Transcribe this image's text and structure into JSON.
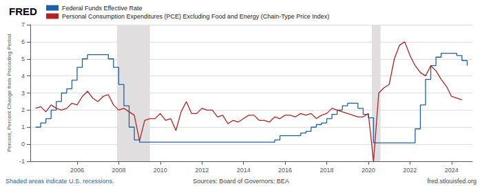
{
  "chart_data": {
    "type": "line",
    "title": "FRED",
    "ylabel": "Percent, Percent Change from Preceding Period",
    "annotations": [
      "Shaded areas indicate U.S. recessions.",
      "Sources: Board of Governors; BEA",
      "fred.stlouisfed.org"
    ],
    "xlim": [
      2003.75,
      2025.0
    ],
    "xticks": [
      2006,
      2008,
      2010,
      2012,
      2014,
      2016,
      2018,
      2020,
      2022,
      2024
    ],
    "ylim": [
      -1,
      7
    ],
    "yticks": [
      -1,
      0,
      1,
      2,
      3,
      4,
      5,
      6,
      7
    ],
    "grid": true,
    "legend": "upper left",
    "recessions": [
      [
        2007.917,
        2009.5
      ],
      [
        2020.167,
        2020.583
      ]
    ],
    "series": [
      {
        "name": "Federal Funds Effective Rate",
        "type": "step",
        "color": "#1f5fa6",
        "x": [
          2004.0,
          2004.25,
          2004.5,
          2004.75,
          2005.0,
          2005.25,
          2005.5,
          2005.75,
          2006.0,
          2006.25,
          2006.5,
          2006.75,
          2007.0,
          2007.25,
          2007.5,
          2007.75,
          2008.0,
          2008.25,
          2008.5,
          2008.75,
          2009.0,
          2009.25,
          2009.5,
          2009.75,
          2010.0,
          2010.25,
          2010.5,
          2010.75,
          2011.0,
          2011.25,
          2011.5,
          2011.75,
          2012.0,
          2012.25,
          2012.5,
          2012.75,
          2013.0,
          2013.25,
          2013.5,
          2013.75,
          2014.0,
          2014.25,
          2014.5,
          2014.75,
          2015.0,
          2015.25,
          2015.5,
          2015.75,
          2016.0,
          2016.25,
          2016.5,
          2016.75,
          2017.0,
          2017.25,
          2017.5,
          2017.75,
          2018.0,
          2018.25,
          2018.5,
          2018.75,
          2019.0,
          2019.25,
          2019.5,
          2019.75,
          2020.0,
          2020.25,
          2020.5,
          2020.75,
          2021.0,
          2021.25,
          2021.5,
          2021.75,
          2022.0,
          2022.25,
          2022.5,
          2022.75,
          2023.0,
          2023.25,
          2023.5,
          2023.75,
          2024.0,
          2024.25,
          2024.5,
          2024.75
        ],
        "values": [
          1.0,
          1.25,
          1.5,
          2.0,
          2.5,
          3.0,
          3.25,
          3.75,
          4.5,
          5.0,
          5.25,
          5.25,
          5.25,
          5.25,
          5.0,
          4.5,
          3.5,
          2.25,
          1.0,
          0.25,
          0.12,
          0.12,
          0.12,
          0.12,
          0.12,
          0.12,
          0.12,
          0.12,
          0.12,
          0.12,
          0.12,
          0.12,
          0.12,
          0.12,
          0.12,
          0.12,
          0.12,
          0.12,
          0.12,
          0.12,
          0.12,
          0.12,
          0.12,
          0.12,
          0.12,
          0.12,
          0.25,
          0.5,
          0.5,
          0.5,
          0.5,
          0.65,
          0.75,
          1.0,
          1.15,
          1.25,
          1.5,
          1.75,
          2.0,
          2.25,
          2.4,
          2.4,
          2.1,
          1.75,
          1.55,
          0.08,
          0.08,
          0.08,
          0.08,
          0.08,
          0.08,
          0.08,
          0.08,
          0.9,
          2.3,
          3.8,
          4.6,
          5.1,
          5.33,
          5.33,
          5.33,
          5.2,
          4.9,
          4.6
        ]
      },
      {
        "name": "Personal Consumption Expenditures (PCE) Excluding Food and Energy (Chain-Type Price Index)",
        "type": "line",
        "color": "#b22222",
        "x": [
          2004.0,
          2004.25,
          2004.5,
          2004.75,
          2005.0,
          2005.25,
          2005.5,
          2005.75,
          2006.0,
          2006.25,
          2006.5,
          2006.75,
          2007.0,
          2007.25,
          2007.5,
          2007.75,
          2008.0,
          2008.25,
          2008.5,
          2008.75,
          2009.0,
          2009.25,
          2009.5,
          2009.75,
          2010.0,
          2010.25,
          2010.5,
          2010.75,
          2011.0,
          2011.25,
          2011.5,
          2011.75,
          2012.0,
          2012.25,
          2012.5,
          2012.75,
          2013.0,
          2013.25,
          2013.5,
          2013.75,
          2014.0,
          2014.25,
          2014.5,
          2014.75,
          2015.0,
          2015.25,
          2015.5,
          2015.75,
          2016.0,
          2016.25,
          2016.5,
          2016.75,
          2017.0,
          2017.25,
          2017.5,
          2017.75,
          2018.0,
          2018.25,
          2018.5,
          2018.75,
          2019.0,
          2019.25,
          2019.5,
          2019.75,
          2020.0,
          2020.25,
          2020.5,
          2020.75,
          2021.0,
          2021.25,
          2021.5,
          2021.75,
          2022.0,
          2022.25,
          2022.5,
          2022.75,
          2023.0,
          2023.25,
          2023.5,
          2023.75,
          2024.0,
          2024.25,
          2024.5
        ],
        "values": [
          2.1,
          2.2,
          1.9,
          2.3,
          2.1,
          2.0,
          2.1,
          2.4,
          2.3,
          2.8,
          3.1,
          2.7,
          2.5,
          2.8,
          2.9,
          2.3,
          2.0,
          2.1,
          1.9,
          1.7,
          0.2,
          1.4,
          1.5,
          1.5,
          1.8,
          1.4,
          1.5,
          0.8,
          1.9,
          2.5,
          1.8,
          1.8,
          2.1,
          2.0,
          2.0,
          1.6,
          1.7,
          1.2,
          1.4,
          1.3,
          1.5,
          1.7,
          1.7,
          1.4,
          1.4,
          1.3,
          1.6,
          1.5,
          1.7,
          1.7,
          1.6,
          1.8,
          1.7,
          1.8,
          1.5,
          1.7,
          1.8,
          2.1,
          2.0,
          1.9,
          1.8,
          1.7,
          1.6,
          1.6,
          1.8,
          -1.0,
          3.0,
          3.3,
          3.5,
          5.0,
          5.8,
          6.0,
          5.2,
          4.6,
          4.2,
          4.0,
          4.6,
          4.3,
          3.8,
          3.4,
          2.8,
          2.7,
          2.6
        ]
      }
    ]
  }
}
